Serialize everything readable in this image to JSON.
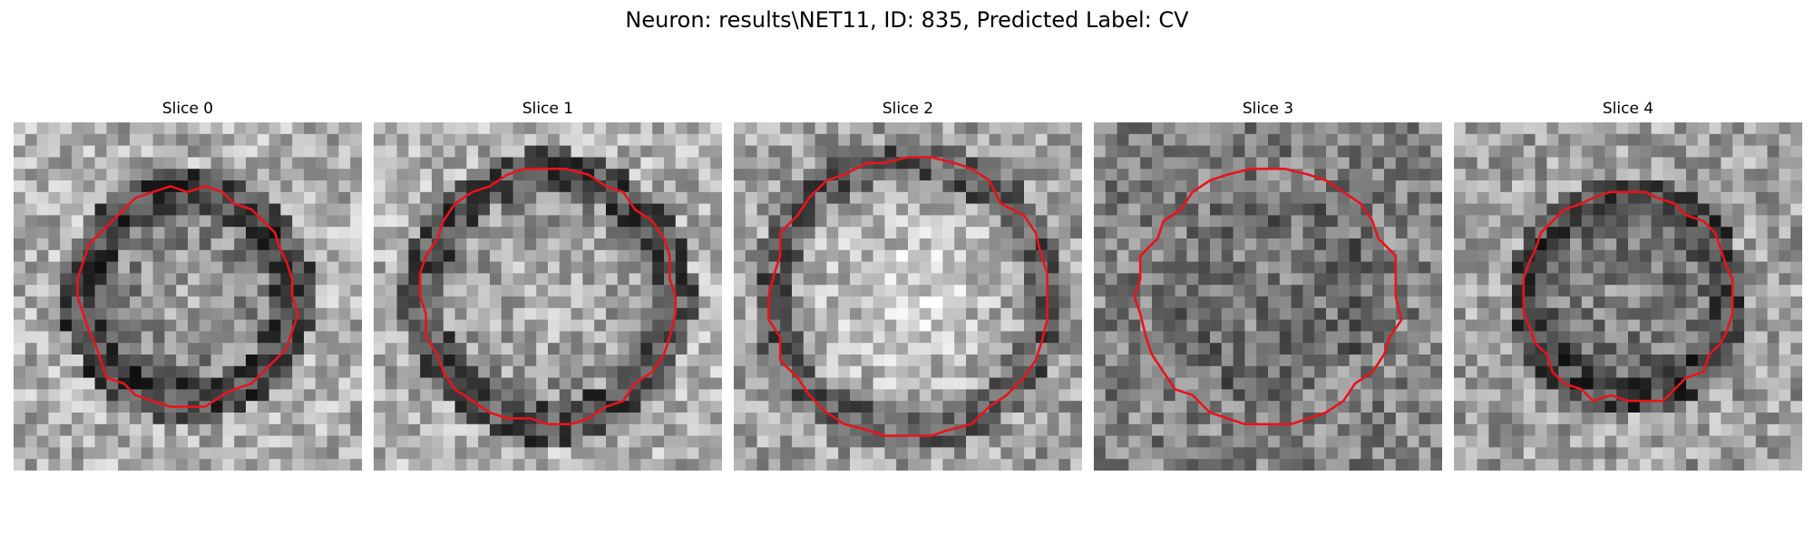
{
  "figure": {
    "title": "Neuron: results\\NET11, ID: 835, Predicted Label: CV"
  },
  "slices": [
    {
      "label": "Slice 0",
      "center_shade": 160,
      "ring_shade": 70,
      "bg_shade": 175,
      "contour_radius": 0.31
    },
    {
      "label": "Slice 1",
      "center_shade": 185,
      "ring_shade": 80,
      "bg_shade": 175,
      "contour_radius": 0.37
    },
    {
      "label": "Slice 2",
      "center_shade": 215,
      "ring_shade": 95,
      "bg_shade": 160,
      "contour_radius": 0.4
    },
    {
      "label": "Slice 3",
      "center_shade": 130,
      "ring_shade": 130,
      "bg_shade": 130,
      "contour_radius": 0.37
    },
    {
      "label": "Slice 4",
      "center_shade": 140,
      "ring_shade": 70,
      "bg_shade": 160,
      "contour_radius": 0.3
    }
  ],
  "colors": {
    "contour": "#e8141c",
    "background": "#ffffff",
    "text": "#000000"
  },
  "grid_cells": 30
}
